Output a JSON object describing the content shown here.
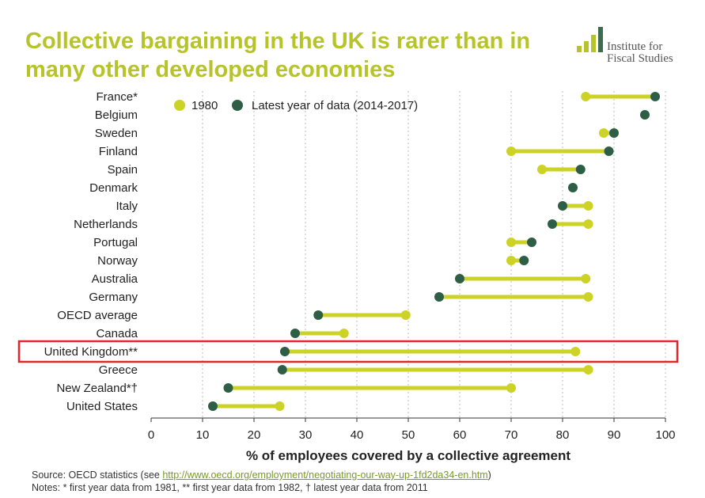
{
  "title": "Collective bargaining in the UK is rarer than in many other developed economies",
  "logo": {
    "line1": "Institute for",
    "line2": "Fiscal Studies",
    "bar_colors": [
      "#b7c32a",
      "#b7c32a",
      "#b7c32a",
      "#3d6b4f"
    ]
  },
  "colors": {
    "series_1980": "#cdd227",
    "series_latest": "#2f5e46",
    "connector": "#cdd227",
    "highlight_box": "#e1262d",
    "gridline": "#bbbbbb",
    "axis": "#333333"
  },
  "chart_data": {
    "type": "dumbbell",
    "xlabel": "% of employees covered by a collective agreement",
    "ylabel": "",
    "xlim": [
      0,
      100
    ],
    "xticks": [
      0,
      10,
      20,
      30,
      40,
      50,
      60,
      70,
      80,
      90,
      100
    ],
    "grid": "vertical dotted",
    "legend": {
      "placement": "top-left",
      "entries": [
        "1980",
        "Latest year of data (2014-2017)"
      ]
    },
    "highlight": "United Kingdom**",
    "categories": [
      "France*",
      "Belgium",
      "Sweden",
      "Finland",
      "Spain",
      "Denmark",
      "Italy",
      "Netherlands",
      "Portugal",
      "Norway",
      "Australia",
      "Germany",
      "OECD average",
      "Canada",
      "United Kingdom**",
      "Greece",
      "New Zealand*†",
      "United States"
    ],
    "series": [
      {
        "name": "1980",
        "values": [
          84.5,
          null,
          88,
          70,
          76,
          null,
          85,
          85,
          70,
          70,
          84.5,
          85,
          49.5,
          37.5,
          82.5,
          85,
          70,
          25
        ]
      },
      {
        "name": "Latest year of data (2014-2017)",
        "values": [
          98,
          96,
          90,
          89,
          83.5,
          82,
          80,
          78,
          74,
          72.5,
          60,
          56,
          32.5,
          28,
          26,
          25.5,
          15,
          12
        ]
      }
    ]
  },
  "source": {
    "prefix": "Source: OECD statistics (see ",
    "link": "http://www.oecd.org/employment/negotiating-our-way-up-1fd2da34-en.htm",
    "suffix": ")",
    "notes": "Notes: * first year data from 1981, ** first year data from 1982, † latest year data from 2011"
  }
}
